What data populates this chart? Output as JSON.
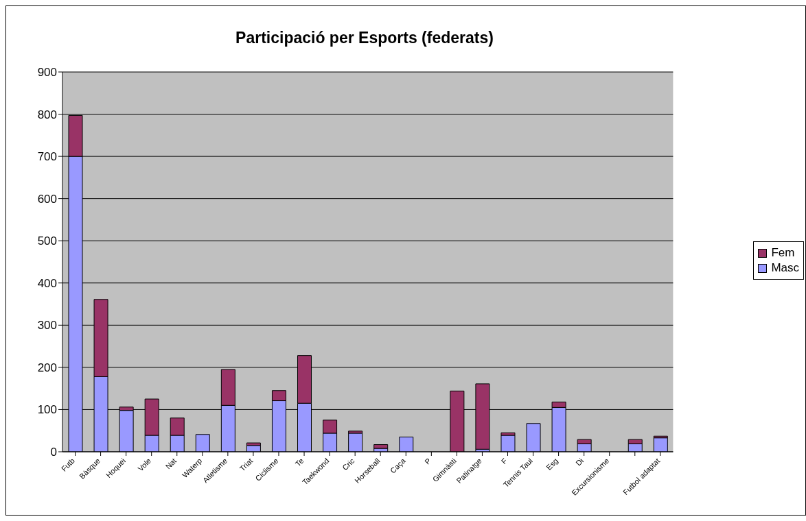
{
  "chart_data": {
    "type": "bar",
    "title": "Participació per Esports (federats)",
    "stacked": true,
    "categories": [
      "Futb",
      "Bàsque",
      "Hoquei",
      "Vole",
      "Nat",
      "Waterp",
      "Atletisme",
      "Triat",
      "Ciclisme",
      "Te",
      "Taekwond",
      "Cric",
      "Horseball",
      "Caça",
      "P",
      "Gimnàsti",
      "Patinatge",
      "F",
      "Tennis Taul",
      "Esg",
      "Di",
      "Excursionisme",
      null,
      "Futbol adaptat"
    ],
    "series": [
      {
        "name": "Masc",
        "color": "#9999ff",
        "values": [
          700,
          178,
          98,
          39,
          39,
          41,
          110,
          15,
          121,
          115,
          44,
          44,
          8,
          35,
          0,
          0,
          6,
          39,
          67,
          105,
          19,
          0,
          19,
          33
        ]
      },
      {
        "name": "Fem",
        "color": "#993366",
        "values": [
          97,
          183,
          8,
          86,
          41,
          0,
          85,
          6,
          24,
          113,
          31,
          5,
          9,
          0,
          0,
          144,
          155,
          6,
          0,
          13,
          10,
          0,
          10,
          4
        ]
      }
    ],
    "ylim": [
      0,
      900
    ],
    "yticks": [
      0,
      100,
      200,
      300,
      400,
      500,
      600,
      700,
      800,
      900
    ],
    "grid": "y",
    "legend": "right"
  }
}
